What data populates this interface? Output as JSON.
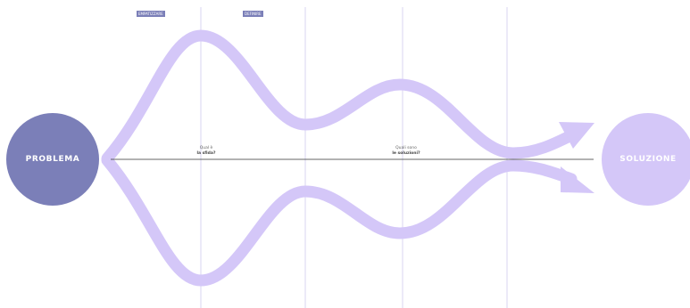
{
  "phase_tags": [
    {
      "label": "EMPATIZZARE"
    },
    {
      "label": "DEFINIRE"
    }
  ],
  "nodes": {
    "problem": {
      "label": "PROBLEMA",
      "color": "#7b7fb8"
    },
    "solution": {
      "label": "SOLUZIONE",
      "color": "#d4c7f8"
    }
  },
  "questions": [
    {
      "line1": "Qual è",
      "line2": "la sfida?"
    },
    {
      "line1": "Quali sono",
      "line2": "le soluzioni?"
    }
  ],
  "colors": {
    "wave": "#d4c7f8",
    "divider": "#d8d5f2",
    "axis": "#333333"
  }
}
